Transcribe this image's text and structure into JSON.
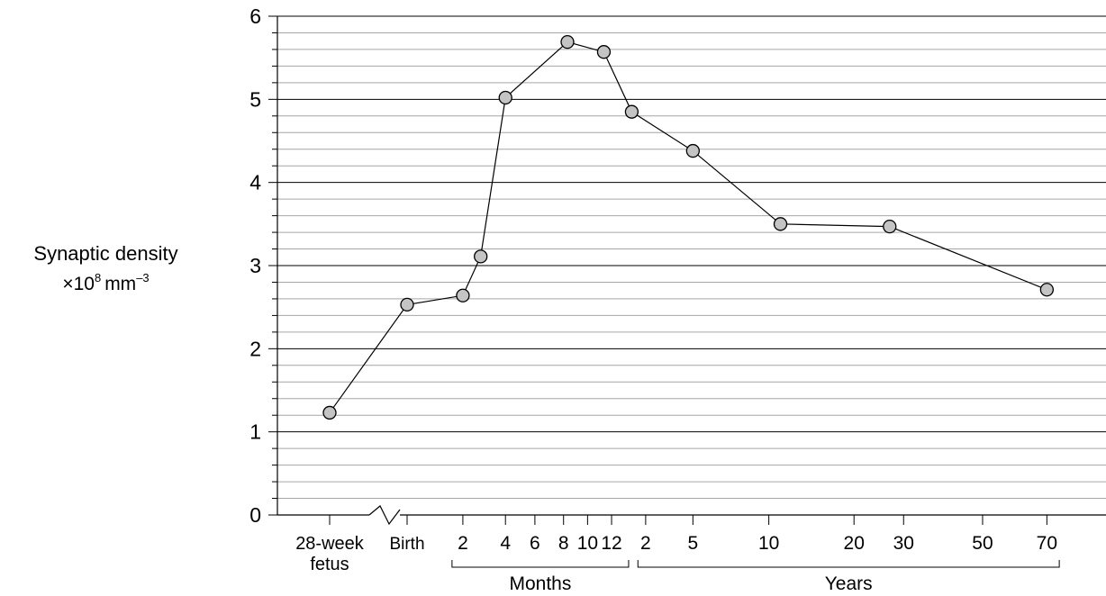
{
  "chart_data": {
    "type": "line",
    "title": "",
    "ylabel": {
      "line1": "Synaptic density",
      "prefix": "×10",
      "exp": "8",
      "unit": "mm",
      "unit_exp": "–3"
    },
    "ylim": [
      0,
      6
    ],
    "yticks": [
      "0",
      "1",
      "2",
      "3",
      "4",
      "5",
      "6"
    ],
    "grid": true,
    "xticks": [
      {
        "label": "28-week",
        "label2": "fetus",
        "pos": 0
      },
      {
        "label": "Birth",
        "pos": 1
      },
      {
        "label": "2",
        "pos": 1.72
      },
      {
        "label": "4",
        "pos": 2.27
      },
      {
        "label": "6",
        "pos": 2.65
      },
      {
        "label": "8",
        "pos": 3.02
      },
      {
        "label": "10",
        "pos": 3.33
      },
      {
        "label": "12",
        "pos": 3.64
      },
      {
        "label": "2",
        "pos": 4.08
      },
      {
        "label": "5",
        "pos": 4.69
      },
      {
        "label": "10",
        "pos": 5.67
      },
      {
        "label": "20",
        "pos": 6.77
      },
      {
        "label": "30",
        "pos": 7.41
      },
      {
        "label": "50",
        "pos": 8.43
      },
      {
        "label": "70",
        "pos": 9.26
      }
    ],
    "groups": [
      {
        "label": "Months",
        "from": 1.58,
        "to": 3.86
      },
      {
        "label": "Years",
        "from": 3.98,
        "to": 9.42
      }
    ],
    "series": [
      {
        "values": [
          {
            "x": 0,
            "y": 1.23
          },
          {
            "x": 1,
            "y": 2.53
          },
          {
            "x": 1.72,
            "y": 2.64
          },
          {
            "x": 1.95,
            "y": 3.11
          },
          {
            "x": 2.27,
            "y": 5.02
          },
          {
            "x": 3.07,
            "y": 5.69
          },
          {
            "x": 3.54,
            "y": 5.57
          },
          {
            "x": 3.9,
            "y": 4.85
          },
          {
            "x": 4.69,
            "y": 4.38
          },
          {
            "x": 5.82,
            "y": 3.5
          },
          {
            "x": 7.23,
            "y": 3.47
          },
          {
            "x": 9.26,
            "y": 2.71
          }
        ]
      }
    ]
  }
}
